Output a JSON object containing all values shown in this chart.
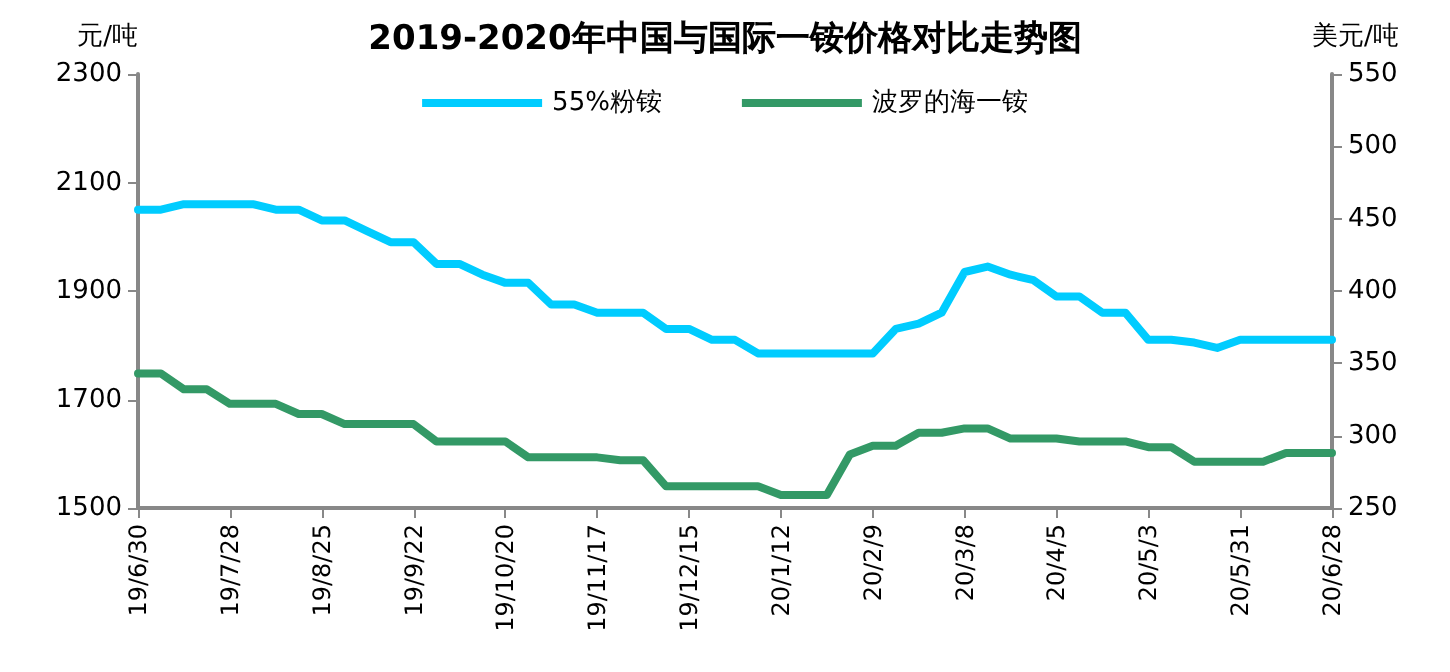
{
  "chart_data": {
    "type": "line",
    "title": "2019-2020年中国与国际一铵价格对比走势图",
    "ylabel": "元/吨",
    "y2label": "美元/吨",
    "categories": [
      "19/6/30",
      null,
      null,
      null,
      "19/7/28",
      null,
      null,
      null,
      "19/8/25",
      null,
      null,
      null,
      "19/9/22",
      null,
      null,
      null,
      "19/10/20",
      null,
      null,
      null,
      "19/11/17",
      null,
      null,
      null,
      "19/12/15",
      null,
      null,
      null,
      "20/1/12",
      null,
      null,
      null,
      "20/2/9",
      null,
      null,
      null,
      "20/3/8",
      null,
      null,
      null,
      "20/4/5",
      null,
      null,
      null,
      "20/5/3",
      null,
      null,
      null,
      "20/5/31",
      null,
      null,
      null,
      "20/6/28"
    ],
    "series": [
      {
        "name": "55%粉铵",
        "color": "#00ccff",
        "values": [
          2050,
          2050,
          2060,
          2060,
          2060,
          2060,
          2050,
          2050,
          2030,
          2030,
          2010,
          1990,
          1990,
          1950,
          1950,
          1930,
          1915,
          1915,
          1875,
          1875,
          1860,
          1860,
          1860,
          1830,
          1830,
          1810,
          1810,
          1785,
          1785,
          1785,
          1785,
          1785,
          1785,
          1830,
          1840,
          1860,
          1935,
          1945,
          1930,
          1920,
          1890,
          1890,
          1860,
          1860,
          1810,
          1810,
          1805,
          1795,
          1810,
          1810,
          1810,
          1810,
          1810
        ]
      },
      {
        "name": "波罗的海一铵",
        "color": "#339966",
        "axis": "y2",
        "values": [
          343,
          343,
          332,
          332,
          322,
          322,
          322,
          315,
          315,
          308,
          308,
          308,
          308,
          296,
          296,
          296,
          296,
          285,
          285,
          285,
          285,
          283,
          283,
          265,
          265,
          265,
          265,
          265,
          259,
          259,
          259,
          287,
          293,
          293,
          302,
          302,
          305,
          305,
          298,
          298,
          298,
          296,
          296,
          296,
          292,
          292,
          282,
          282,
          282,
          282,
          288,
          288,
          288
        ]
      }
    ],
    "ylim": [
      1500,
      2300
    ],
    "yticks": [
      1500,
      1700,
      1900,
      2100,
      2300
    ],
    "y2lim": [
      250,
      550
    ],
    "y2ticks": [
      250,
      300,
      350,
      400,
      450,
      500,
      550
    ],
    "grid": false,
    "legend": "top",
    "marker": "none",
    "line_style": "solid"
  }
}
